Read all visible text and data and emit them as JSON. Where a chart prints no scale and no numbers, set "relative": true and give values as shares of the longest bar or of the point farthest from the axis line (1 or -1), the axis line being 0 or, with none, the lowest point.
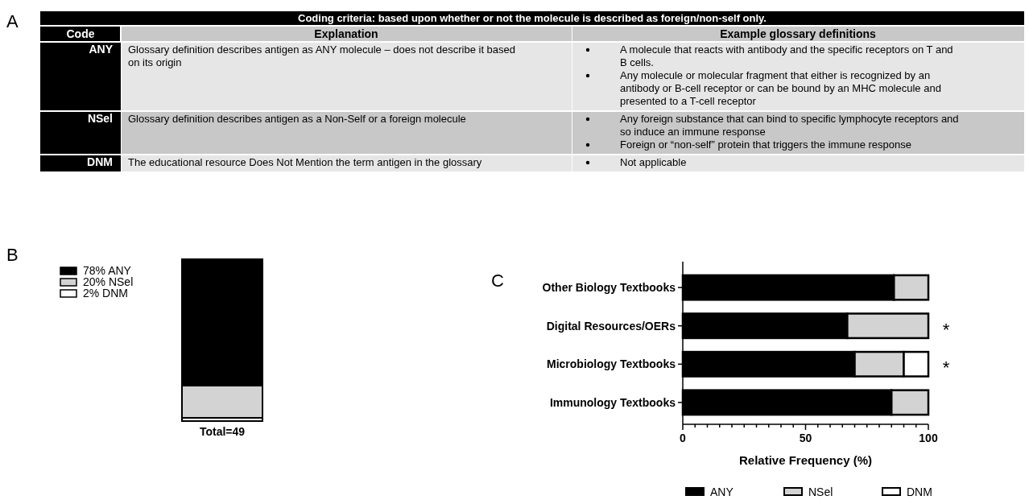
{
  "chart_data": [
    {
      "type": "other",
      "title": "Coding criteria: based upon whether or not the molecule is described as foreign/non-self only.",
      "categories": [
        "Code",
        "Explanation",
        "Example glossary definitions"
      ],
      "y_categories": [
        "ANY",
        "NSel",
        "DNM"
      ],
      "cell_labels": [
        [
          "Glossary definition describes antigen as ANY molecule – does not describe it based on its origin",
          [
            "A molecule that reacts with antibody and the specific receptors on T and B cells.",
            "Any molecule or molecular fragment that either is recognized by an antibody or B-cell receptor or can be bound by an MHC molecule and presented to a T-cell receptor"
          ]
        ],
        [
          "Glossary definition describes antigen as a Non-Self or a foreign molecule",
          [
            "Any foreign substance that can bind to specific lymphocyte receptors and so induce an immune response",
            "Foreign or “non-self” protein that triggers the immune response"
          ]
        ],
        [
          "The educational resource Does Not Mention the term antigen in the glossary",
          [
            "Not applicable"
          ]
        ]
      ],
      "annotations": [
        "A"
      ]
    },
    {
      "type": "bar",
      "stacked": true,
      "relative": true,
      "categories": [
        "Total=49"
      ],
      "legend": "top left",
      "grid": false,
      "series": [
        {
          "name": "2% DNM",
          "color": "#ffffff",
          "values": [
            0.02
          ]
        },
        {
          "name": "20% NSel",
          "color": "#d3d3d3",
          "values": [
            0.2
          ]
        },
        {
          "name": "78% ANY",
          "color": "#000000",
          "values": [
            0.78
          ]
        }
      ],
      "annotations": [
        "B"
      ]
    },
    {
      "type": "bar",
      "stacked": true,
      "orientation": "horizontal",
      "categories": [
        "Other Biology Textbooks",
        "Digital Resources/OERs",
        "Microbiology Textbooks",
        "Immunology Textbooks"
      ],
      "xlim": [
        0,
        100
      ],
      "xticks": [
        0,
        {
          "value": 5,
          "label": null
        },
        {
          "value": 10,
          "label": null
        },
        {
          "value": 15,
          "label": null
        },
        {
          "value": 20,
          "label": null
        },
        {
          "value": 25,
          "label": null
        },
        {
          "value": 30,
          "label": null
        },
        {
          "value": 35,
          "label": null
        },
        {
          "value": 40,
          "label": null
        },
        {
          "value": 45,
          "label": null
        },
        50,
        {
          "value": 55,
          "label": null
        },
        {
          "value": 60,
          "label": null
        },
        {
          "value": 65,
          "label": null
        },
        {
          "value": 70,
          "label": null
        },
        {
          "value": 75,
          "label": null
        },
        {
          "value": 80,
          "label": null
        },
        {
          "value": 85,
          "label": null
        },
        {
          "value": 90,
          "label": null
        },
        {
          "value": 95,
          "label": null
        },
        100
      ],
      "xlabel": "Relative Frequency (%)",
      "legend": "bottom",
      "grid": false,
      "series": [
        {
          "name": "ANY",
          "color": "#000000",
          "values": [
            86,
            67,
            70,
            85
          ]
        },
        {
          "name": "NSel",
          "color": "#d3d3d3",
          "values": [
            14,
            33,
            20,
            15
          ]
        },
        {
          "name": "DNM",
          "color": "#ffffff",
          "values": [
            null,
            null,
            10,
            null
          ]
        }
      ],
      "annotations": [
        "C",
        {
          "text": "*",
          "x": 100,
          "y": "Digital Resources/OERs"
        },
        {
          "text": "*",
          "x": 100,
          "y": "Microbiology Textbooks"
        }
      ]
    }
  ]
}
